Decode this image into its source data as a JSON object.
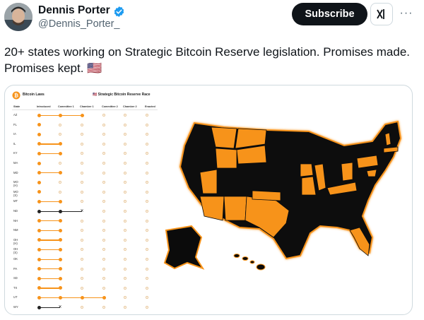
{
  "post": {
    "author_name": "Dennis Porter",
    "handle": "@Dennis_Porter_",
    "subscribe_label": "Subscribe",
    "more_label": "···",
    "text": "20+ states working on Strategic Bitcoin Reserve legislation. Promises made. Promises kept. 🇺🇸"
  },
  "infographic": {
    "left_title": "Bitcoin Laws",
    "right_title": "🇺🇸 Strategic Bitcoin Reserve Race",
    "columns": [
      "State",
      "Introduced",
      "Committee 1",
      "Chamber 1",
      "Committee 2",
      "Chamber 2",
      "Enacted"
    ],
    "rows": [
      {
        "state": "AZ",
        "stage": 3,
        "failed": false
      },
      {
        "state": "FL",
        "stage": 1,
        "failed": false
      },
      {
        "state": "IA",
        "stage": 1,
        "failed": false
      },
      {
        "state": "IL",
        "stage": 2,
        "failed": false
      },
      {
        "state": "KY",
        "stage": 2,
        "failed": false
      },
      {
        "state": "MA",
        "stage": 1,
        "failed": false
      },
      {
        "state": "MD",
        "stage": 2,
        "failed": false
      },
      {
        "state": "MO (H)",
        "stage": 1,
        "failed": false
      },
      {
        "state": "MO (S)",
        "stage": 1,
        "failed": false
      },
      {
        "state": "MT",
        "stage": 2,
        "failed": false
      },
      {
        "state": "ND",
        "stage": 3,
        "failed": true
      },
      {
        "state": "NH",
        "stage": 2,
        "failed": false
      },
      {
        "state": "NM",
        "stage": 2,
        "failed": false
      },
      {
        "state": "OH (H)",
        "stage": 2,
        "failed": false
      },
      {
        "state": "OH (S)",
        "stage": 2,
        "failed": false
      },
      {
        "state": "OK",
        "stage": 2,
        "failed": false
      },
      {
        "state": "PA",
        "stage": 2,
        "failed": false
      },
      {
        "state": "SD",
        "stage": 2,
        "failed": false
      },
      {
        "state": "TX",
        "stage": 2,
        "failed": false
      },
      {
        "state": "UT",
        "stage": 4,
        "failed": false
      },
      {
        "state": "WY",
        "stage": 2,
        "failed": true
      }
    ]
  },
  "colors": {
    "accent_orange": "#f7931a",
    "map_black": "#0b0b0b",
    "verified_blue": "#1d9bf0"
  }
}
